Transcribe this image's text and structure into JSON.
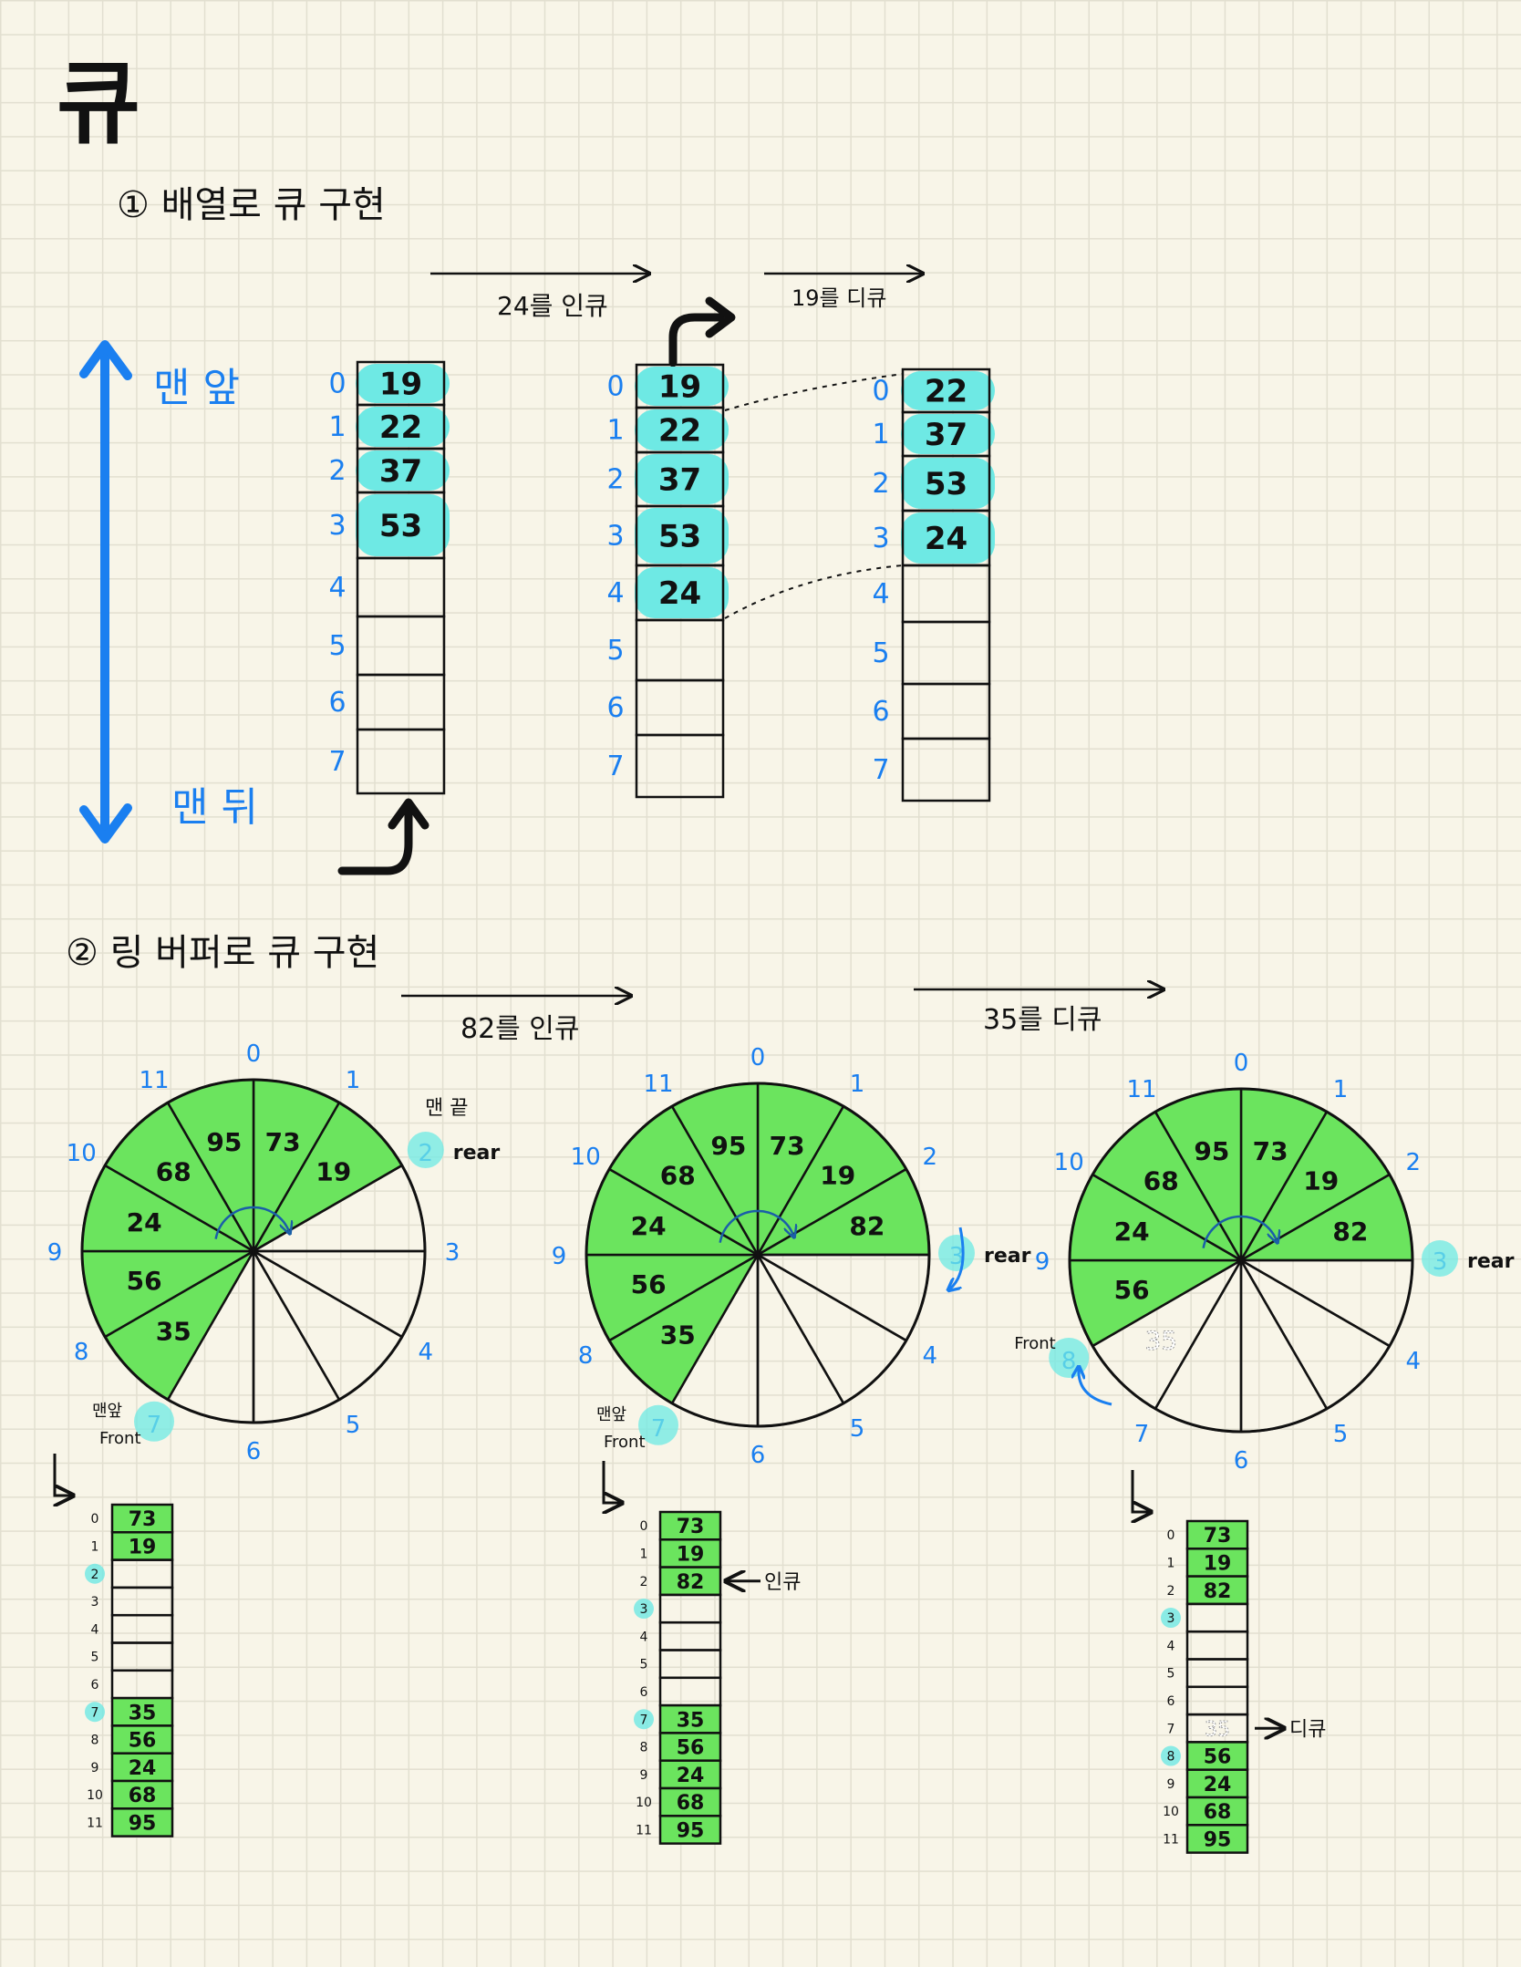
{
  "colors": {
    "ink": "#111111",
    "blue": "#1a7ff0",
    "cyan": "#6ee9e4",
    "green": "#6be45e",
    "dotted": "#bbbbbb"
  },
  "title": "큐",
  "section1": {
    "heading": "① 배열로 큐 구현",
    "front_label": "맨 앞",
    "back_label": "맨 뒤",
    "step1_label": "24를 인큐",
    "step2_label": "19를 디큐",
    "arrays": [
      {
        "indices": [
          "0",
          "1",
          "2",
          "3",
          "4",
          "5",
          "6",
          "7"
        ],
        "values": [
          "19",
          "22",
          "37",
          "53",
          "",
          "",
          "",
          ""
        ]
      },
      {
        "indices": [
          "0",
          "1",
          "2",
          "3",
          "4",
          "5",
          "6",
          "7"
        ],
        "values": [
          "19",
          "22",
          "37",
          "53",
          "24",
          "",
          "",
          ""
        ]
      },
      {
        "indices": [
          "0",
          "1",
          "2",
          "3",
          "4",
          "5",
          "6",
          "7"
        ],
        "values": [
          "22",
          "37",
          "53",
          "24",
          "",
          "",
          "",
          ""
        ]
      }
    ]
  },
  "section2": {
    "heading": "② 링 버퍼로 큐 구현",
    "step1_label": "82를 인큐",
    "step2_label": "35를 디큐",
    "end_label": "맨 끝",
    "front_label_ko": "맨앞",
    "front_label_en": "Front",
    "rear_label": "rear",
    "enqueue_label": "인큐",
    "dequeue_label": "디큐",
    "ring_indices": [
      "0",
      "1",
      "2",
      "3",
      "4",
      "5",
      "6",
      "7",
      "8",
      "9",
      "10",
      "11"
    ],
    "rings": [
      {
        "values": [
          "73",
          "19",
          "",
          "",
          "",
          "",
          "",
          "35",
          "56",
          "24",
          "68",
          "95"
        ],
        "front": 7,
        "rear": 2,
        "ghost": ""
      },
      {
        "values": [
          "73",
          "19",
          "82",
          "",
          "",
          "",
          "",
          "35",
          "56",
          "24",
          "68",
          "95"
        ],
        "front": 7,
        "rear": 3,
        "ghost": ""
      },
      {
        "values": [
          "73",
          "19",
          "82",
          "",
          "",
          "",
          "",
          "",
          "56",
          "24",
          "68",
          "95"
        ],
        "front": 8,
        "rear": 3,
        "ghost": "35"
      }
    ]
  }
}
